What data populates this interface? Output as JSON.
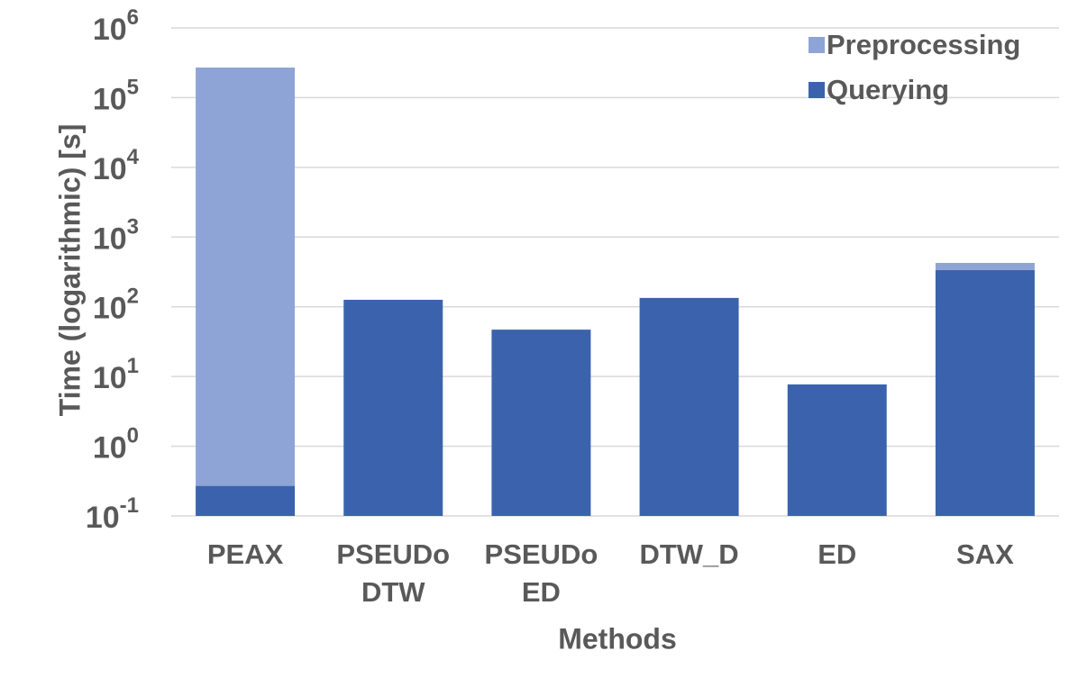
{
  "chart_data": {
    "type": "bar",
    "stacked": true,
    "log_scale": true,
    "grid": true,
    "y_label": "Time (logarithmic) [s]",
    "x_label": "Methods",
    "categories": [
      "PEAX",
      "PSEUDo\nDTW",
      "PSEUDo\nED",
      "DTW_D",
      "ED",
      "SAX"
    ],
    "series": [
      {
        "name": "Preprocessing",
        "color": "#8fa4d6",
        "values": [
          270000,
          0,
          0,
          0,
          0,
          90
        ]
      },
      {
        "name": "Querying",
        "color": "#3b63ad",
        "values": [
          0.27,
          126,
          47,
          134,
          7.7,
          336
        ]
      }
    ],
    "ylim": [
      0.1,
      1000000
    ],
    "yticks": [
      {
        "value": 0.1,
        "label": "10",
        "exponent": "-1"
      },
      {
        "value": 1,
        "label": "10",
        "exponent": "0"
      },
      {
        "value": 10,
        "label": "10",
        "exponent": "1"
      },
      {
        "value": 100,
        "label": "10",
        "exponent": "2"
      },
      {
        "value": 1000,
        "label": "10",
        "exponent": "3"
      },
      {
        "value": 10000,
        "label": "10",
        "exponent": "4"
      },
      {
        "value": 100000,
        "label": "10",
        "exponent": "5"
      },
      {
        "value": 1000000,
        "label": "10",
        "exponent": "6"
      }
    ],
    "legend": "top-right"
  }
}
